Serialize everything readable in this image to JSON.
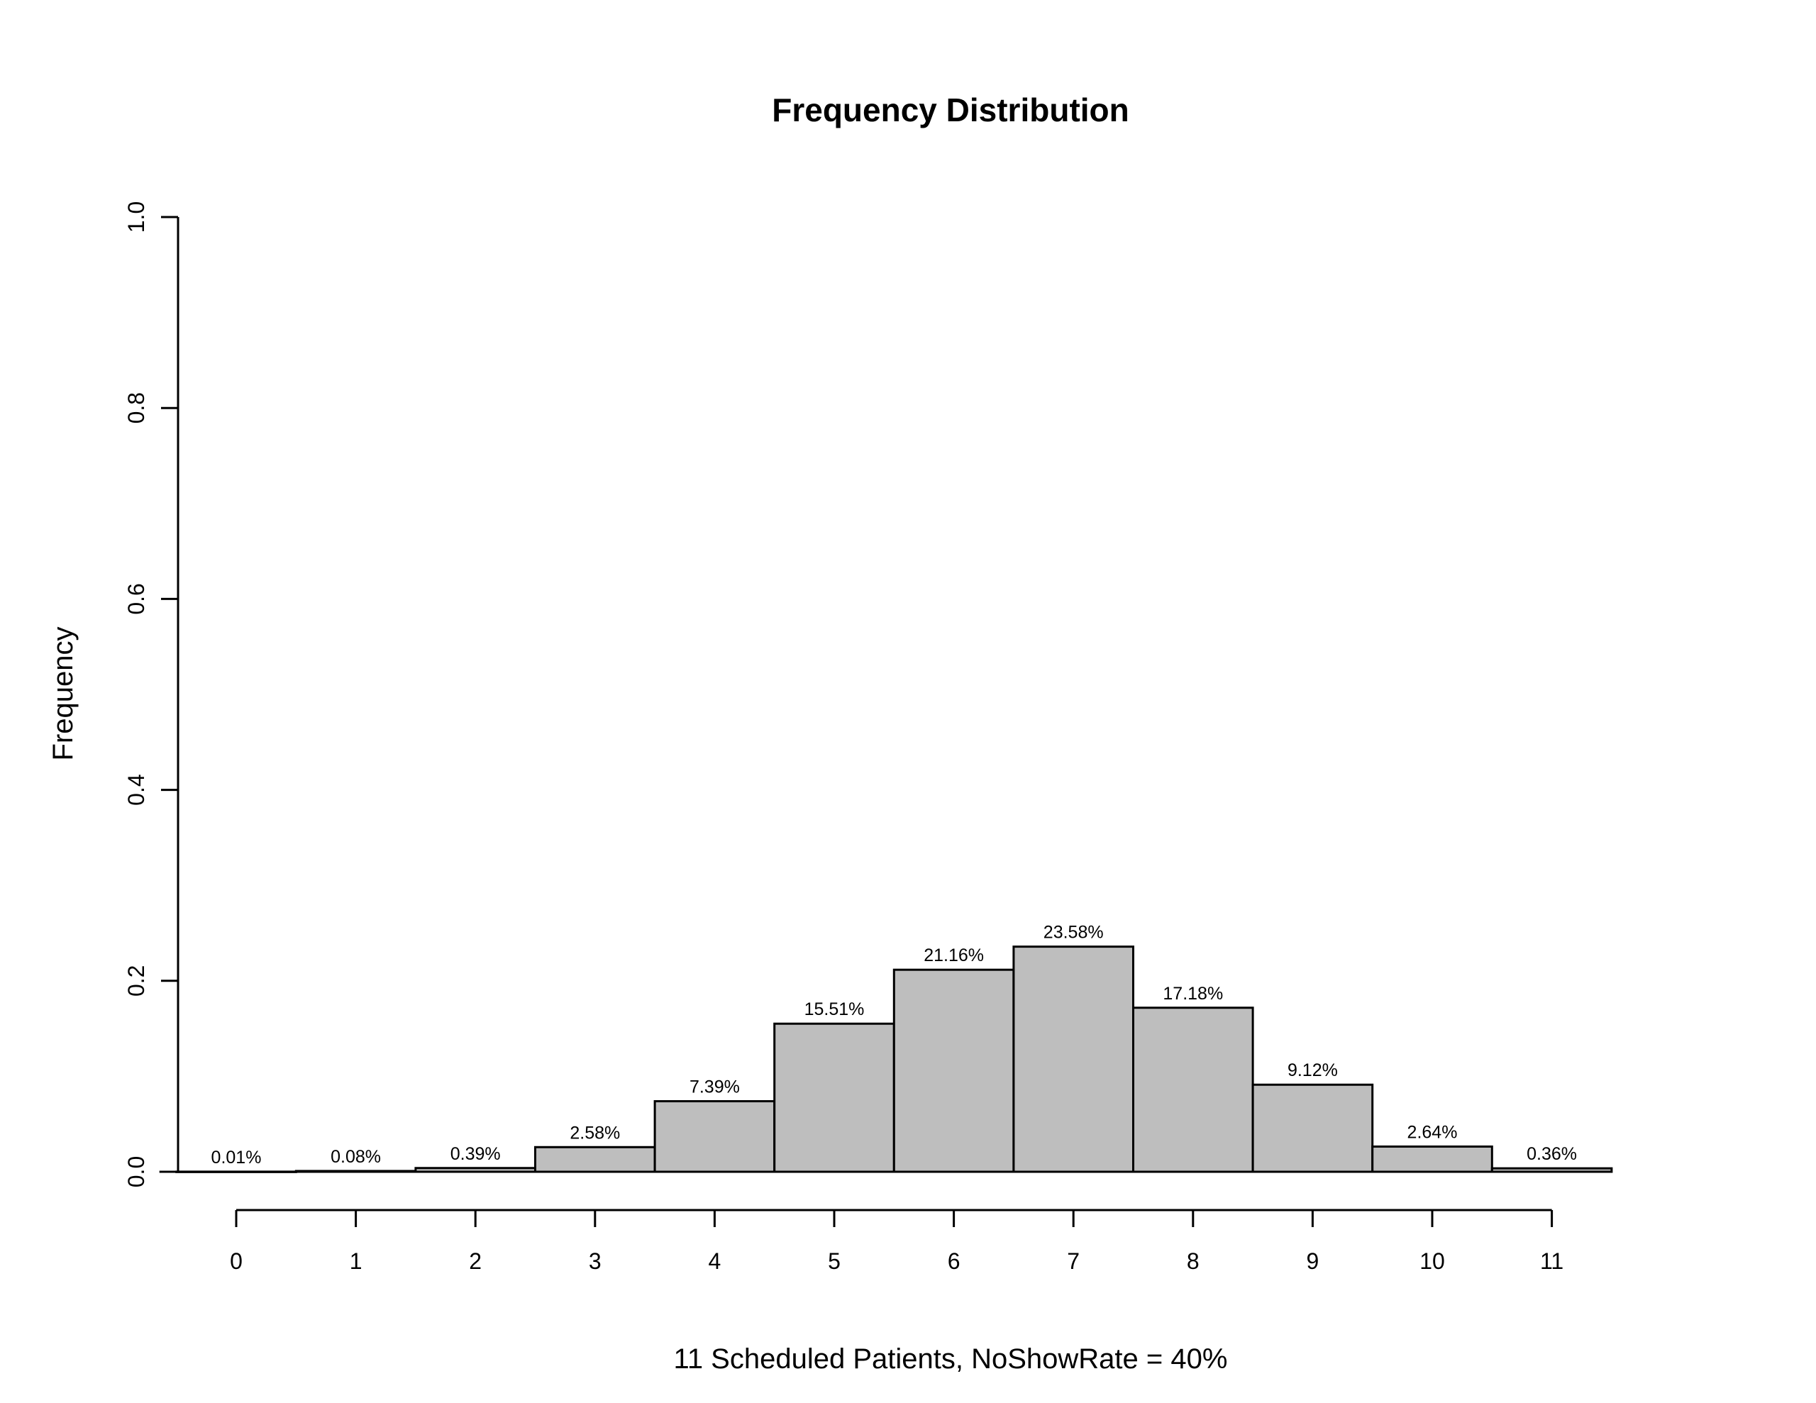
{
  "chart_data": {
    "type": "bar",
    "title": "Frequency Distribution",
    "xlabel": "11 Scheduled Patients,  NoShowRate = 40%",
    "ylabel": "Frequency",
    "categories": [
      "0",
      "1",
      "2",
      "3",
      "4",
      "5",
      "6",
      "7",
      "8",
      "9",
      "10",
      "11"
    ],
    "values": [
      0.0001,
      0.0008,
      0.0039,
      0.0258,
      0.0739,
      0.1551,
      0.2116,
      0.2358,
      0.1718,
      0.0912,
      0.0264,
      0.0036
    ],
    "data_labels": [
      "0.01%",
      "0.08%",
      "0.39%",
      "2.58%",
      "7.39%",
      "15.51%",
      "21.16%",
      "23.58%",
      "17.18%",
      "9.12%",
      "2.64%",
      "0.36%"
    ],
    "ylim": [
      0,
      1
    ],
    "y_ticks": [
      "0.0",
      "0.2",
      "0.4",
      "0.6",
      "0.8",
      "1.0"
    ],
    "grid": false,
    "colors": {
      "bar_fill": "#bebebe",
      "bar_stroke": "#000000"
    }
  }
}
